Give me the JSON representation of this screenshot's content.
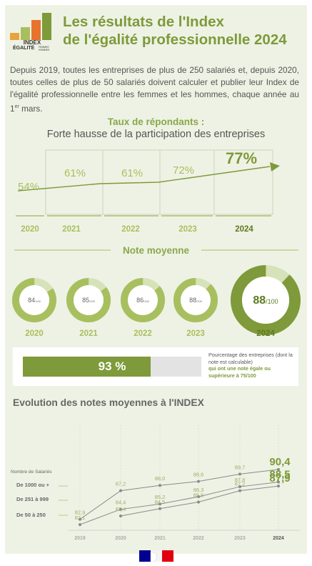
{
  "header": {
    "logo_text_1": "INDEX",
    "logo_text_2": "ÉGALITÉ",
    "logo_text_3": "FEMMES HOMMES",
    "logo_colors": [
      "#e8a33d",
      "#a8bf5f",
      "#e8732d",
      "#7e9a3a"
    ],
    "title_line1": "Les résultats de l'Index",
    "title_line2": "de l'égalité professionnelle 2024"
  },
  "intro": {
    "text": "Depuis 2019, toutes les entreprises de plus de 250 salariés et, depuis 2020, toutes celles de plus de 50 salariés doivent calculer et publier leur Index de l'égalité professionnelle entre les femmes et les hommes, chaque année au 1",
    "sup": "er",
    "text_end": " mars."
  },
  "participation": {
    "title": "Taux de répondants :",
    "subtitle": "Forte hausse de la participation des entreprises"
  },
  "note_moyenne": {
    "title": "Note moyenne"
  },
  "progress": {
    "value_label": "93 %",
    "fraction": 0.93,
    "desc_line1": "Pourcentage des entreprises (dont la note est calculable)",
    "desc_line2": "qui ont une note égale ou supérieure à 75/100"
  },
  "evolution": {
    "title": "Evolution des notes moyennes à l'INDEX"
  },
  "colors": {
    "accent": "#7e9a3a",
    "light": "#a8bf5f",
    "pale": "#d6e2b8",
    "flag_blue": "#000091",
    "flag_red": "#e1000f"
  },
  "chart_data": [
    {
      "type": "line",
      "title": "Taux de répondants :",
      "subtitle": "Forte hausse de la participation des entreprises",
      "categories": [
        "2020",
        "2021",
        "2022",
        "2023",
        "2024"
      ],
      "values": [
        54,
        61,
        61,
        72,
        77
      ],
      "value_labels": [
        "54%",
        "61%",
        "61%",
        "72%",
        "77%"
      ],
      "unit": "%"
    },
    {
      "type": "pie",
      "title": "Note moyenne",
      "categories": [
        "2020",
        "2021",
        "2022",
        "2023",
        "2024"
      ],
      "values": [
        84,
        85,
        86,
        88,
        88
      ],
      "max": 100,
      "value_labels": [
        "84",
        "85",
        "86",
        "88",
        "88"
      ],
      "suffix": "/100"
    },
    {
      "type": "line",
      "title": "Evolution des notes moyennes à l'INDEX",
      "legend_title": "Nombre de Salariés",
      "x": [
        "2019",
        "2020",
        "2021",
        "2022",
        "2023",
        "2024"
      ],
      "series": [
        {
          "name": "De 1000 ou +",
          "values": [
            82.9,
            87.2,
            88.0,
            88.6,
            89.7,
            90.4
          ],
          "labels": [
            "82,9",
            "87,2",
            "88,0",
            "88,6",
            "89,7",
            "90,4"
          ]
        },
        {
          "name": "De 251 à 999",
          "values": [
            82.1,
            84.4,
            85.2,
            86.3,
            87.8,
            88.5
          ],
          "labels": [
            "82,1",
            "84,4",
            "85,2",
            "86,3",
            "87,8",
            "88,5"
          ]
        },
        {
          "name": "De 50 à 250",
          "values": [
            null,
            83.4,
            84.5,
            85.5,
            87.2,
            87.9
          ],
          "labels": [
            "",
            "83,4",
            "84,5",
            "85,5",
            "87,2",
            "87,9"
          ]
        }
      ]
    }
  ]
}
